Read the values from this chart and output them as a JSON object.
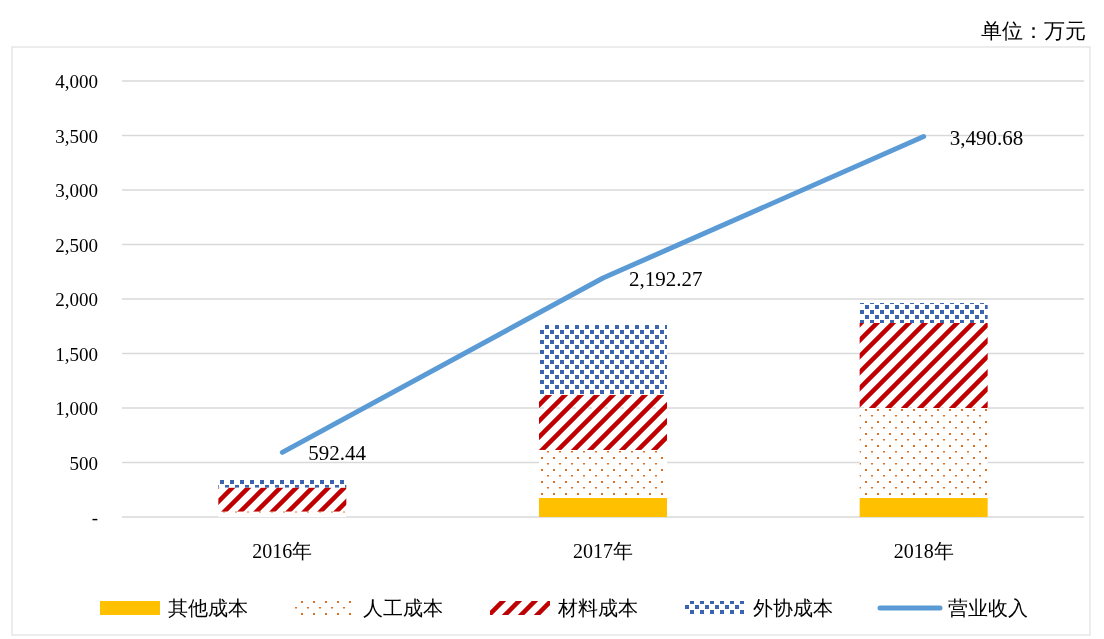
{
  "chart_data": {
    "type": "bar",
    "stacked": true,
    "categories": [
      "2016年",
      "2017年",
      "2018年"
    ],
    "series": [
      {
        "name": "其他成本",
        "color": "#ffc000",
        "values": [
          0,
          175,
          175
        ]
      },
      {
        "name": "人工成本",
        "color": "#e07020",
        "values": [
          50,
          440,
          825
        ]
      },
      {
        "name": "材料成本",
        "color": "#c00000",
        "values": [
          220,
          504,
          780
        ]
      },
      {
        "name": "外协成本",
        "color": "#3a64b0",
        "values": [
          70,
          642,
          183
        ]
      },
      {
        "name": "营业收入",
        "type": "line",
        "color": "#5b9bd5",
        "values": [
          592.44,
          2192.27,
          3490.68
        ],
        "value_labels": [
          "592.44",
          "2,192.27",
          "3,490.68"
        ]
      }
    ],
    "ylim": [
      0,
      4000
    ],
    "yticks": [
      {
        "value": 0,
        "label": "-"
      },
      {
        "value": 500,
        "label": "500"
      },
      {
        "value": 1000,
        "label": "1,000"
      },
      {
        "value": 1500,
        "label": "1,500"
      },
      {
        "value": 2000,
        "label": "2,000"
      },
      {
        "value": 2500,
        "label": "2,500"
      },
      {
        "value": 3000,
        "label": "3,000"
      },
      {
        "value": 3500,
        "label": "3,500"
      },
      {
        "value": 4000,
        "label": "4,000"
      }
    ],
    "grid": "y",
    "legend": "bottom",
    "annotations": [
      "单位：万元"
    ]
  }
}
